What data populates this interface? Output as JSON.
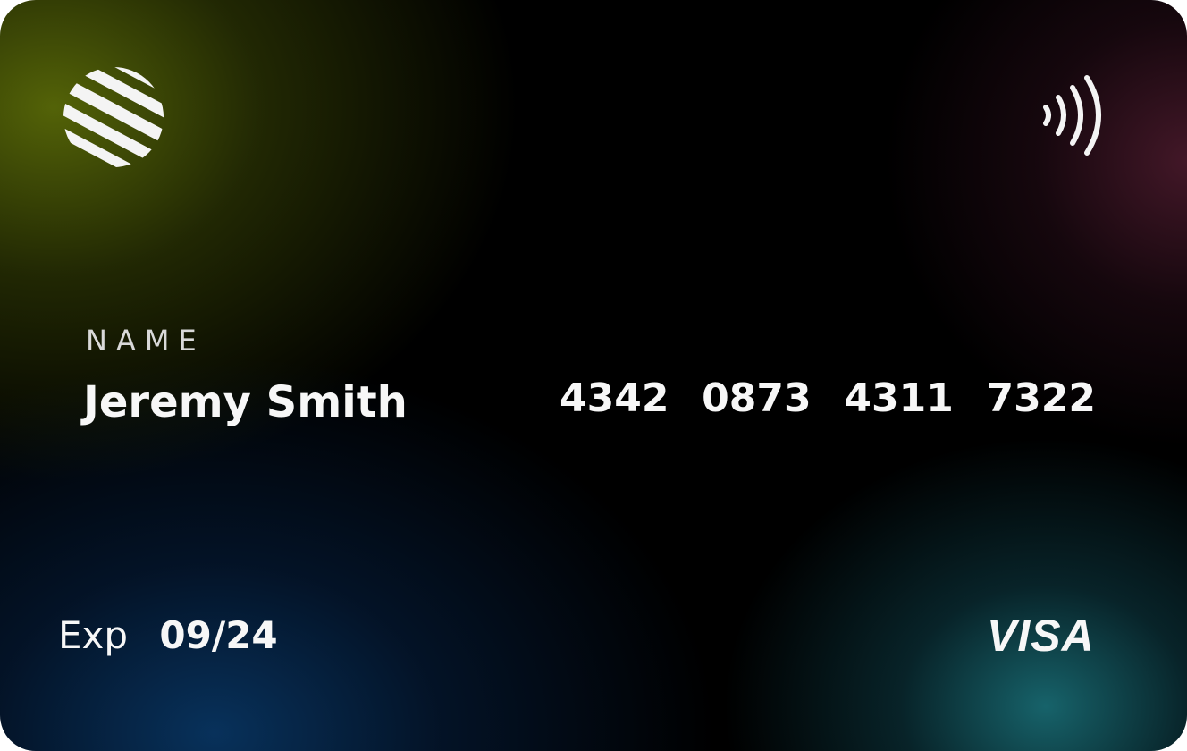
{
  "card": {
    "name_label": "NAME",
    "holder_name": "Jeremy Smith",
    "number_groups": [
      "4342",
      "0873",
      "4311",
      "7322"
    ],
    "expiry_label": "Exp",
    "expiry_value": "09/24",
    "brand": "VISA"
  },
  "icons": {
    "logo": "striped-globe-icon",
    "contactless": "contactless-payment-icon"
  },
  "colors": {
    "card_base": "#000000",
    "glow_top_left": "#586808",
    "glow_bottom_left": "#083460",
    "glow_top_right": "#4a1a2c",
    "glow_bottom_right": "#186870",
    "text": "#f7f7f7"
  }
}
